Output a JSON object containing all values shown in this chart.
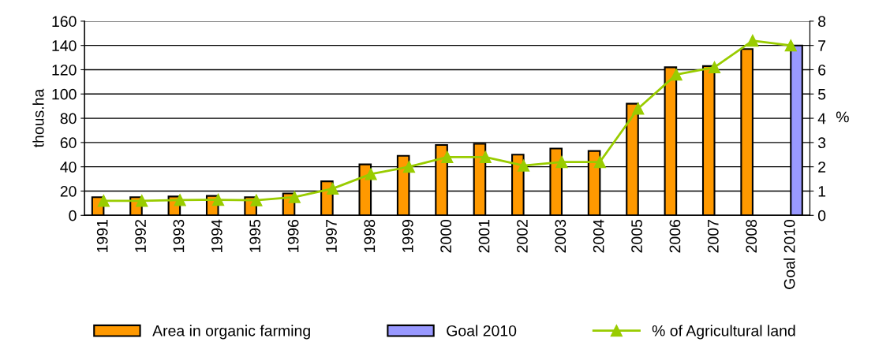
{
  "chart_data": {
    "type": "bar",
    "ylabel": "thous.ha",
    "y2label": "%",
    "categories": [
      "1991",
      "1992",
      "1993",
      "1994",
      "1995",
      "1996",
      "1997",
      "1998",
      "1999",
      "2000",
      "2001",
      "2002",
      "2003",
      "2004",
      "2005",
      "2006",
      "2007",
      "2008",
      "Goal 2010"
    ],
    "series": [
      {
        "name": "Area in organic farming",
        "color": "#ff9900",
        "values": [
          15,
          15,
          15.5,
          16,
          15,
          18,
          28,
          42,
          49,
          58,
          59,
          50,
          55,
          53,
          92,
          122,
          123,
          137,
          null
        ]
      },
      {
        "name": "Goal 2010",
        "color": "#9999ff",
        "values": [
          null,
          null,
          null,
          null,
          null,
          null,
          null,
          null,
          null,
          null,
          null,
          null,
          null,
          null,
          null,
          null,
          null,
          null,
          140
        ]
      },
      {
        "name": "% of Agricultural land",
        "type": "line",
        "axis": "y2",
        "color": "#99cc00",
        "marker": "triangle",
        "values": [
          0.6,
          0.6,
          0.63,
          0.64,
          0.62,
          0.75,
          1.1,
          1.7,
          2.0,
          2.4,
          2.4,
          2.05,
          2.2,
          2.2,
          4.4,
          5.8,
          6.1,
          7.2,
          7.0
        ]
      }
    ],
    "ylim": [
      0,
      160
    ],
    "yticks": [
      0,
      20,
      40,
      60,
      80,
      100,
      120,
      140,
      160
    ],
    "y2lim": [
      0,
      8
    ],
    "y2ticks": [
      0,
      1,
      2,
      3,
      4,
      5,
      6,
      7,
      8
    ],
    "grid": "y",
    "legend": "bottom"
  }
}
